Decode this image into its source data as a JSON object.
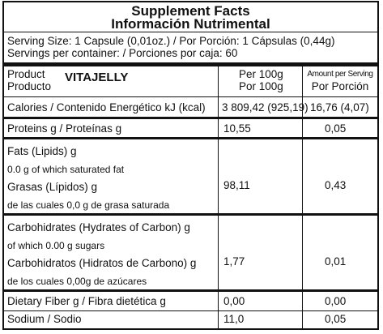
{
  "title": {
    "line1": "Supplement Facts",
    "line2": "Información Nutrimental"
  },
  "serving": {
    "size": "Serving Size: 1 Capsule (0,01oz.) / Por Porción: 1 Cápsulas (0,44g)",
    "per_container": "Servings per container: / Porciones por caja: 60"
  },
  "header": {
    "product_en": "Product",
    "product_es": "Producto",
    "brand": "VITAJELLY",
    "per100_en": "Per 100g",
    "per100_es": "Por 100g",
    "per_serving_en": "Amount per Serving",
    "per_serving_es": "Por Porción"
  },
  "rows": {
    "calories": {
      "label": "Calories / Contenido Energético  kJ (kcal)",
      "per100": "3 809,42 (925,19)",
      "per_serving": "16,76 (4,07)"
    },
    "proteins": {
      "label": "Proteins g / Proteínas g",
      "per100": "10,55",
      "per_serving": "0,05"
    },
    "fats": {
      "line1": "Fats (Lipids) g",
      "line2": "0.0 g of which saturated fat",
      "line3": "Grasas (Lípidos) g",
      "line4": "de las cuales 0,0 g de grasa saturada",
      "per100": "98,11",
      "per_serving": "0,43"
    },
    "carbs": {
      "line1": "Carbohidrates (Hydrates of Carbon) g",
      "line2": "of which 0.00 g sugars",
      "line3": "Carbohidratos (Hidratos de Carbono) g",
      "line4": "de los cuales 0,00g de azúcares",
      "per100": "1,77",
      "per_serving": "0,01"
    },
    "fiber": {
      "label": "Dietary Fiber g / Fibra dietética g",
      "per100": "0,00",
      "per_serving": "0,00"
    },
    "sodium": {
      "label": "Sodium / Sodio",
      "per100": "11,0",
      "per_serving": "0,05"
    }
  }
}
